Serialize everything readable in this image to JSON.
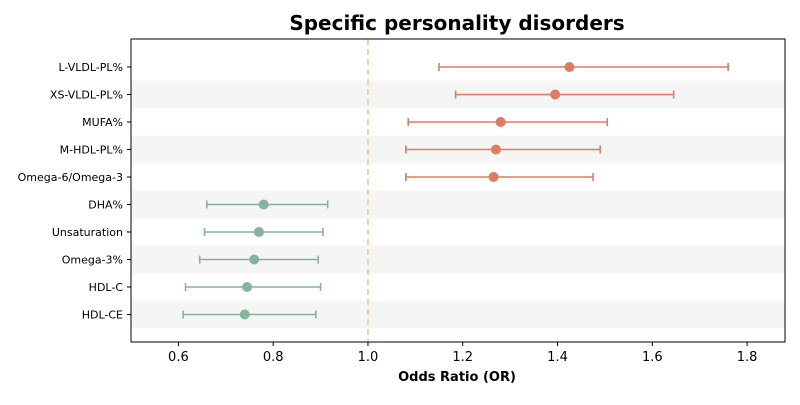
{
  "chart_data": {
    "type": "forest",
    "title": "Specific personality disorders",
    "xlabel": "Odds Ratio (OR)",
    "ylabel": "",
    "xlim": [
      0.5,
      1.88
    ],
    "xticks": [
      0.6,
      0.8,
      1.0,
      1.2,
      1.4,
      1.6,
      1.8
    ],
    "xtick_labels": [
      "0.6",
      "0.8",
      "1.0",
      "1.2",
      "1.4",
      "1.6",
      "1.8"
    ],
    "reference_line": 1.0,
    "colors": {
      "risk": "#e07b5f",
      "protective": "#85b49c",
      "reference": "#f2c98a",
      "band": "#f5f5f5"
    },
    "categories": [
      "L-VLDL-PL%",
      "XS-VLDL-PL%",
      "MUFA%",
      "M-HDL-PL%",
      "Omega-6/Omega-3",
      "DHA%",
      "Unsaturation",
      "Omega-3%",
      "HDL-C",
      "HDL-CE"
    ],
    "or": [
      1.425,
      1.395,
      1.28,
      1.27,
      1.265,
      0.78,
      0.77,
      0.76,
      0.745,
      0.74
    ],
    "ci_low": [
      1.15,
      1.185,
      1.085,
      1.08,
      1.08,
      0.66,
      0.655,
      0.645,
      0.615,
      0.61
    ],
    "ci_high": [
      1.76,
      1.645,
      1.505,
      1.49,
      1.475,
      0.915,
      0.905,
      0.895,
      0.9,
      0.89
    ]
  }
}
